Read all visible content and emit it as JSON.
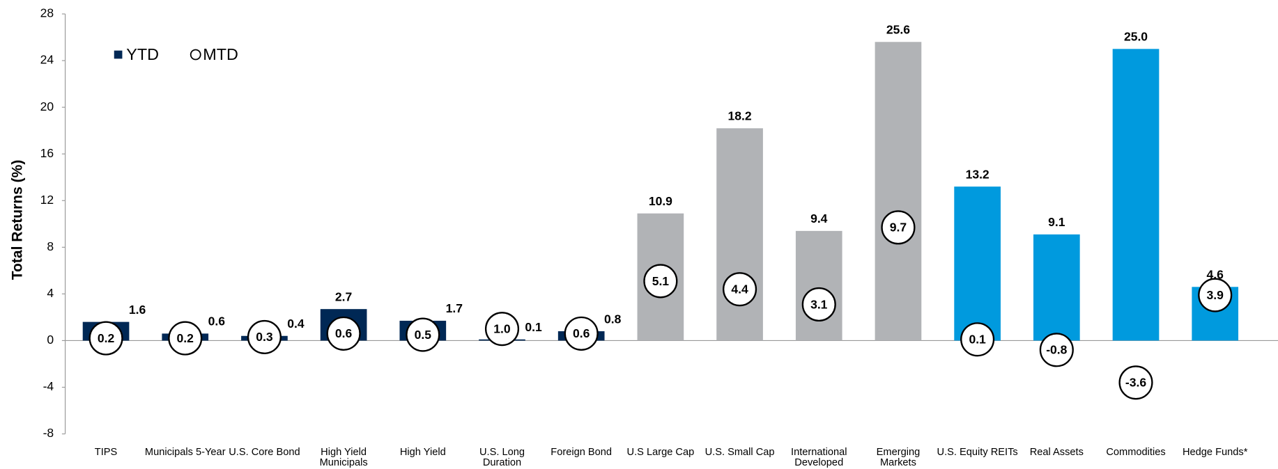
{
  "chart_data": {
    "type": "bar",
    "y_label": "Total Returns (%)",
    "categories": [
      "TIPS",
      "Municipals 5-Year",
      "U.S. Core Bond",
      "High Yield Municipals",
      "High Yield",
      "U.S. Long Duration",
      "Foreign Bond",
      "U.S Large Cap",
      "U.S. Small Cap",
      "International Developed",
      "Emerging Markets",
      "U.S. Equity REITs",
      "Real Assets",
      "Commodities",
      "Hedge Funds*"
    ],
    "series": [
      {
        "name": "YTD",
        "marker": "bar",
        "colors": [
          "#002855",
          "#002855",
          "#002855",
          "#002855",
          "#002855",
          "#002855",
          "#002855",
          "#b1b3b6",
          "#b1b3b6",
          "#b1b3b6",
          "#b1b3b6",
          "#009ade",
          "#009ade",
          "#009ade",
          "#009ade"
        ],
        "values": [
          1.6,
          0.6,
          0.4,
          2.7,
          1.7,
          0.1,
          0.8,
          10.9,
          18.2,
          9.4,
          25.6,
          13.2,
          9.1,
          25.0,
          4.6
        ],
        "value_labels": [
          "1.6",
          "0.6",
          "0.4",
          "2.7",
          "1.7",
          "0.1",
          "0.8",
          "10.9",
          "18.2",
          "9.4",
          "25.6",
          "13.2",
          "9.1",
          "25.0",
          "4.6"
        ]
      },
      {
        "name": "MTD",
        "marker": "circle",
        "color": "#ffffff",
        "values": [
          0.2,
          0.2,
          0.3,
          0.6,
          0.5,
          1.0,
          0.6,
          5.1,
          4.4,
          3.1,
          9.7,
          0.1,
          -0.8,
          -3.6,
          3.9
        ],
        "value_labels": [
          "0.2",
          "0.2",
          "0.3",
          "0.6",
          "0.5",
          "1.0",
          "0.6",
          "5.1",
          "4.4",
          "3.1",
          "9.7",
          "0.1",
          "-0.8",
          "-3.6",
          "3.9"
        ]
      }
    ],
    "ylim": [
      -8,
      28
    ],
    "yticks": [
      -8,
      -4,
      0,
      4,
      8,
      12,
      16,
      20,
      24,
      28
    ],
    "grid": false
  }
}
